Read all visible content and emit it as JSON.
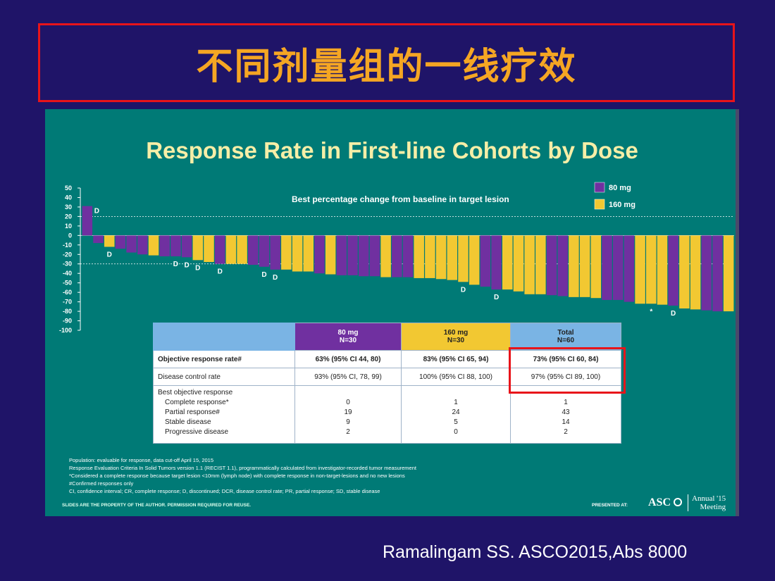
{
  "header": {
    "title": "不同剂量组的一线疗效"
  },
  "slide": {
    "title": "Response Rate in First-line Cohorts by Dose",
    "footnotes": [
      "Population: evaluable for response, data cut-off April 15, 2015",
      "Response Evaluation Criteria In Solid Tumors version 1.1 (RECIST 1.1), programmatically calculated from investigator-recorded tumor measurement",
      "*Considered a complete response because target lesion <10mm (lymph node) with complete response in non-target-lesions and no new lesions",
      "#Confirmed responses only",
      "CI, confidence interval; CR, complete response; D, discontinued; DCR, disease control rate; PR, partial response; SD, stable disease"
    ],
    "slides_note": "SLIDES ARE THE PROPERTY OF THE AUTHOR. PERMISSION REQUIRED FOR REUSE.",
    "presented_at": "PRESENTED AT:",
    "asco_logo": "ASC",
    "meeting_line1": "Annual '15",
    "meeting_line2": "Meeting"
  },
  "citation": "Ramalingam SS. ASCO2015,Abs 8000",
  "colors": {
    "mg80": "#7030a0",
    "mg160": "#f2c832",
    "background": "#1f1468",
    "slide": "#007a76",
    "title": "#f5a623",
    "highlight": "#e8141a"
  },
  "chart_data": {
    "type": "bar",
    "title": "Best percentage change from baseline in target lesion",
    "ylim": [
      -100,
      50
    ],
    "yticks": [
      "50",
      "40",
      "30",
      "20",
      "10",
      "0",
      "-10",
      "-20",
      "-30",
      "-40",
      "-50",
      "-60",
      "-70",
      "-80",
      "-90",
      "-100"
    ],
    "reference_lines": [
      20,
      -30
    ],
    "legend": [
      {
        "name": "80 mg",
        "color": "#7030a0"
      },
      {
        "name": "160 mg",
        "color": "#f2c832"
      }
    ],
    "legend_position": "top-right",
    "bars": [
      {
        "value": 31,
        "dose": "80",
        "label": "D"
      },
      {
        "value": -8,
        "dose": "80"
      },
      {
        "value": -12,
        "dose": "160",
        "label": "D"
      },
      {
        "value": -14,
        "dose": "80"
      },
      {
        "value": -18,
        "dose": "80"
      },
      {
        "value": -20,
        "dose": "80"
      },
      {
        "value": -21,
        "dose": "160"
      },
      {
        "value": -22,
        "dose": "80"
      },
      {
        "value": -22,
        "dose": "80",
        "label": "D"
      },
      {
        "value": -23,
        "dose": "80",
        "label": "D"
      },
      {
        "value": -26,
        "dose": "160",
        "label": "D"
      },
      {
        "value": -28,
        "dose": "160"
      },
      {
        "value": -30,
        "dose": "80",
        "label": "D"
      },
      {
        "value": -30,
        "dose": "160"
      },
      {
        "value": -30,
        "dose": "160"
      },
      {
        "value": -31,
        "dose": "80"
      },
      {
        "value": -33,
        "dose": "80",
        "label": "D"
      },
      {
        "value": -36,
        "dose": "80",
        "label": "D"
      },
      {
        "value": -36,
        "dose": "160"
      },
      {
        "value": -38,
        "dose": "160"
      },
      {
        "value": -38,
        "dose": "160"
      },
      {
        "value": -40,
        "dose": "80"
      },
      {
        "value": -41,
        "dose": "160"
      },
      {
        "value": -42,
        "dose": "80"
      },
      {
        "value": -42,
        "dose": "80"
      },
      {
        "value": -43,
        "dose": "80"
      },
      {
        "value": -43,
        "dose": "80"
      },
      {
        "value": -44,
        "dose": "160"
      },
      {
        "value": -44,
        "dose": "80"
      },
      {
        "value": -44,
        "dose": "80"
      },
      {
        "value": -45,
        "dose": "160"
      },
      {
        "value": -45,
        "dose": "160"
      },
      {
        "value": -46,
        "dose": "160"
      },
      {
        "value": -47,
        "dose": "160"
      },
      {
        "value": -49,
        "dose": "160",
        "label": "D"
      },
      {
        "value": -52,
        "dose": "160"
      },
      {
        "value": -54,
        "dose": "80"
      },
      {
        "value": -57,
        "dose": "80",
        "label": "D"
      },
      {
        "value": -57,
        "dose": "160"
      },
      {
        "value": -59,
        "dose": "160"
      },
      {
        "value": -62,
        "dose": "160"
      },
      {
        "value": -62,
        "dose": "160"
      },
      {
        "value": -63,
        "dose": "80"
      },
      {
        "value": -64,
        "dose": "80"
      },
      {
        "value": -65,
        "dose": "160"
      },
      {
        "value": -65,
        "dose": "160"
      },
      {
        "value": -66,
        "dose": "160"
      },
      {
        "value": -68,
        "dose": "80"
      },
      {
        "value": -68,
        "dose": "80"
      },
      {
        "value": -70,
        "dose": "80"
      },
      {
        "value": -72,
        "dose": "160"
      },
      {
        "value": -72,
        "dose": "160",
        "label": "*"
      },
      {
        "value": -73,
        "dose": "160"
      },
      {
        "value": -74,
        "dose": "80",
        "label": "D"
      },
      {
        "value": -77,
        "dose": "160"
      },
      {
        "value": -78,
        "dose": "160"
      },
      {
        "value": -79,
        "dose": "80"
      },
      {
        "value": -80,
        "dose": "80"
      },
      {
        "value": -80,
        "dose": "160"
      }
    ]
  },
  "table": {
    "header": [
      "",
      "80 mg\nN=30",
      "160 mg\nN=30",
      "Total\nN=60"
    ],
    "rows": [
      [
        "Objective response rate#",
        "63% (95% CI 44, 80)",
        "83% (95% CI 65, 94)",
        "73% (95% CI 60, 84)"
      ],
      [
        "Disease control rate",
        "93% (95% CI, 78, 99)",
        "100% (95% CI 88, 100)",
        "97% (95% CI 89, 100)"
      ]
    ],
    "bor": {
      "labels": [
        "Best objective response",
        "Complete response*",
        "Partial response#",
        "Stable disease",
        "Progressive disease"
      ],
      "mg80": [
        "",
        "0",
        "19",
        "9",
        "2"
      ],
      "mg160": [
        "",
        "1",
        "24",
        "5",
        "0"
      ],
      "total": [
        "",
        "1",
        "43",
        "14",
        "2"
      ]
    }
  }
}
